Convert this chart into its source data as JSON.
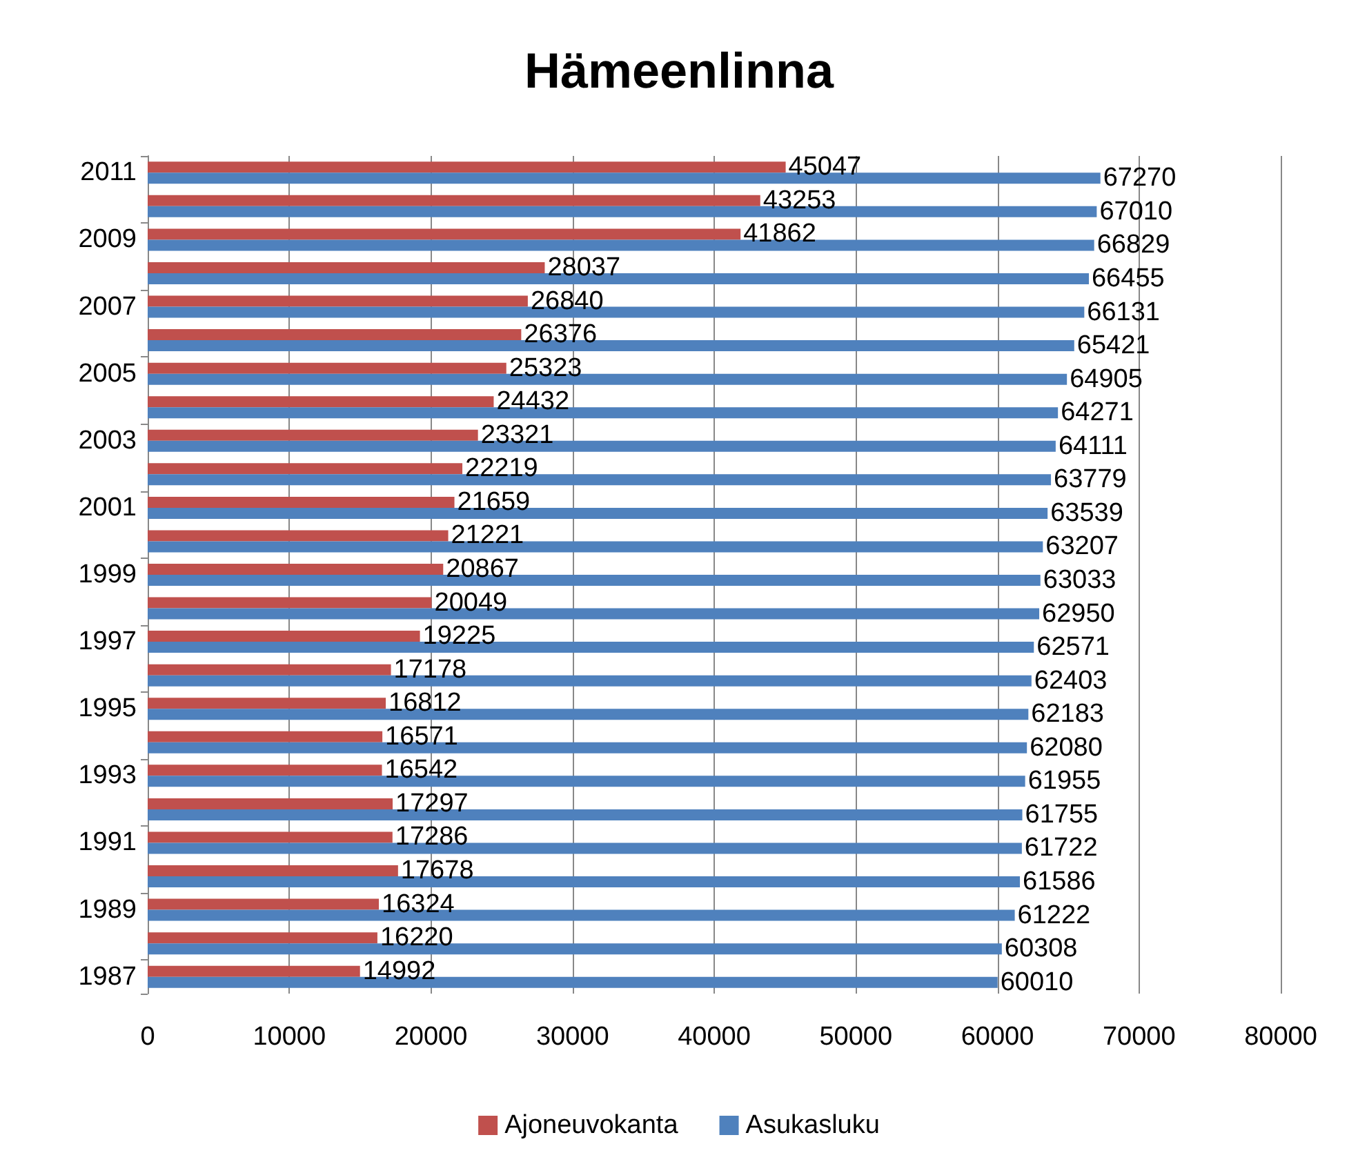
{
  "chart_data": {
    "type": "bar",
    "orientation": "horizontal",
    "title": "Hämeenlinna",
    "categories": [
      "2011",
      null,
      "2009",
      null,
      "2007",
      null,
      "2005",
      null,
      "2003",
      null,
      "2001",
      null,
      "1999",
      null,
      "1997",
      null,
      "1995",
      null,
      "1993",
      null,
      "1991",
      null,
      "1989",
      null,
      "1987"
    ],
    "series": [
      {
        "name": "Ajoneuvokanta",
        "color": "#c0504d",
        "values": [
          45047,
          43253,
          41862,
          28037,
          26840,
          26376,
          25323,
          24432,
          23321,
          22219,
          21659,
          21221,
          20867,
          20049,
          19225,
          17178,
          16812,
          16571,
          16542,
          17297,
          17286,
          17678,
          16324,
          16220,
          14992
        ]
      },
      {
        "name": "Asukasluku",
        "color": "#4f81bd",
        "values": [
          67270,
          67010,
          66829,
          66455,
          66131,
          65421,
          64905,
          64271,
          64111,
          63779,
          63539,
          63207,
          63033,
          62950,
          62571,
          62403,
          62183,
          62080,
          61955,
          61755,
          61722,
          61586,
          61222,
          60308,
          60010
        ]
      }
    ],
    "xlim": [
      0,
      80000
    ],
    "xticks": [
      0,
      10000,
      20000,
      30000,
      40000,
      50000,
      60000,
      70000,
      80000
    ],
    "data_labels": true,
    "grid": "x",
    "legend": "bottom"
  }
}
